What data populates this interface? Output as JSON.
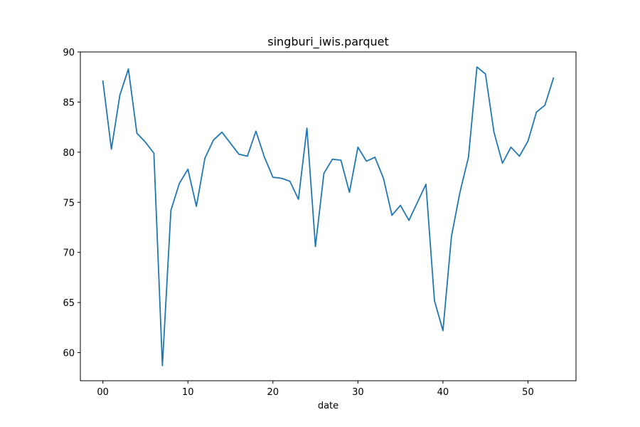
{
  "chart_data": {
    "type": "line",
    "title": "singburi_iwis.parquet",
    "xlabel": "date",
    "ylabel": "",
    "xlim": [
      -2.65,
      55.65
    ],
    "ylim": [
      57.2,
      90.0
    ],
    "x_ticks": [
      0,
      10,
      20,
      30,
      40,
      50
    ],
    "x_tick_labels": [
      "00",
      "10",
      "20",
      "30",
      "40",
      "50"
    ],
    "y_ticks": [
      60,
      65,
      70,
      75,
      80,
      85,
      90
    ],
    "y_tick_labels": [
      "60",
      "65",
      "70",
      "75",
      "80",
      "85",
      "90"
    ],
    "grid": false,
    "legend": false,
    "series": [
      {
        "color": "#1f77b4",
        "x": [
          0,
          1,
          2,
          3,
          4,
          5,
          6,
          7,
          8,
          9,
          10,
          11,
          12,
          13,
          14,
          15,
          16,
          17,
          18,
          19,
          20,
          21,
          22,
          23,
          24,
          25,
          26,
          27,
          28,
          29,
          30,
          31,
          32,
          33,
          34,
          35,
          36,
          37,
          38,
          39,
          40,
          41,
          42,
          43,
          44,
          45,
          46,
          47,
          48,
          49,
          50,
          51,
          52,
          53
        ],
        "values": [
          87.1,
          80.3,
          85.7,
          88.3,
          81.9,
          81.0,
          79.9,
          58.7,
          74.2,
          76.9,
          78.3,
          74.6,
          79.4,
          81.2,
          82.0,
          80.9,
          79.8,
          79.6,
          82.1,
          79.5,
          77.5,
          77.4,
          77.1,
          75.3,
          82.4,
          70.6,
          77.9,
          79.3,
          79.2,
          76.0,
          80.5,
          79.1,
          79.5,
          77.4,
          73.7,
          74.7,
          73.2,
          75.0,
          76.8,
          65.2,
          62.2,
          71.6,
          76.0,
          79.5,
          88.5,
          87.8,
          82.0,
          78.9,
          80.5,
          79.6,
          81.1,
          84.0,
          84.7,
          87.4
        ]
      }
    ]
  }
}
